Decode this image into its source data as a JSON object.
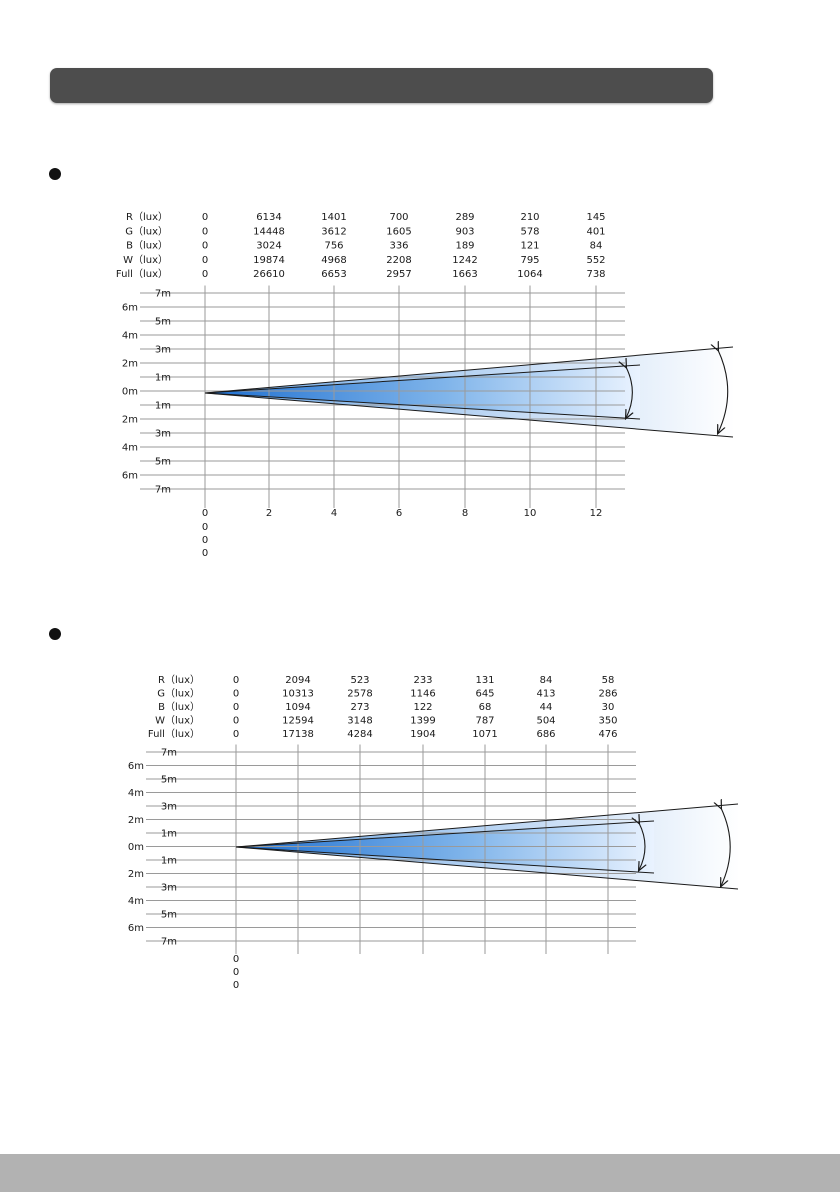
{
  "colors": {
    "header_bar": "#4d4d4d",
    "footer_bar": "#b2b2b2",
    "beam_core": "#1e6fd0",
    "beam_fade": "#eaf3ff",
    "grid_line": "#9a9a9a"
  },
  "charts": [
    {
      "row_labels": [
        "R（lux）",
        "G（lux）",
        "B（lux）",
        "W（lux）",
        "Full（lux）"
      ],
      "columns": [
        [
          "0",
          "0",
          "0",
          "0",
          "0"
        ],
        [
          "6134",
          "14448",
          "3024",
          "19874",
          "26610"
        ],
        [
          "1401",
          "3612",
          "756",
          "4968",
          "6653"
        ],
        [
          "700",
          "1605",
          "336",
          "2208",
          "2957"
        ],
        [
          "289",
          "903",
          "189",
          "1242",
          "1663"
        ],
        [
          "210",
          "578",
          "121",
          "795",
          "1064"
        ],
        [
          "145",
          "401",
          "84",
          "552",
          "738"
        ]
      ],
      "y_labels_left": [
        "6m",
        "4m",
        "2m",
        "0m",
        "2m",
        "4m",
        "6m"
      ],
      "y_labels_right": [
        "7m",
        "5m",
        "3m",
        "1m",
        "1m",
        "3m",
        "5m",
        "7m"
      ],
      "x_ticks": [
        "0",
        "2",
        "4",
        "6",
        "8",
        "10",
        "12"
      ],
      "zero_labels": [
        "0",
        "0",
        "0"
      ]
    },
    {
      "row_labels": [
        "R（lux）",
        "G（lux）",
        "B（lux）",
        "W（lux）",
        "Full（lux）"
      ],
      "columns": [
        [
          "0",
          "0",
          "0",
          "0",
          "0"
        ],
        [
          "2094",
          "10313",
          "1094",
          "12594",
          "17138"
        ],
        [
          "523",
          "2578",
          "273",
          "3148",
          "4284"
        ],
        [
          "233",
          "1146",
          "122",
          "1399",
          "1904"
        ],
        [
          "131",
          "645",
          "68",
          "787",
          "1071"
        ],
        [
          "84",
          "413",
          "44",
          "504",
          "686"
        ],
        [
          "58",
          "286",
          "30",
          "350",
          "476"
        ]
      ],
      "y_labels_left": [
        "6m",
        "4m",
        "2m",
        "0m",
        "2m",
        "4m",
        "6m"
      ],
      "y_labels_right": [
        "7m",
        "5m",
        "3m",
        "1m",
        "1m",
        "3m",
        "5m",
        "7m"
      ],
      "x_ticks": [],
      "zero_labels": [
        "0",
        "0",
        "0"
      ]
    }
  ]
}
